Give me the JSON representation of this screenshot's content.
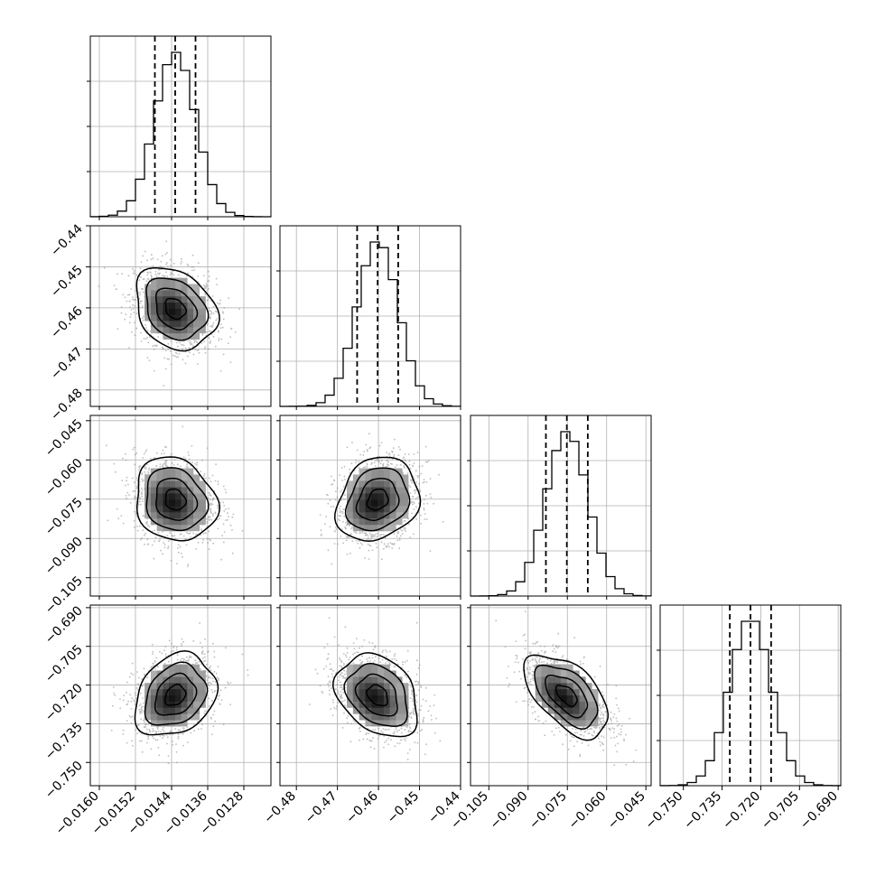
{
  "chart_data": {
    "type": "corner",
    "grid": true,
    "colors": {
      "ink": "#000000",
      "grid": "#b0b0b0",
      "scatter": "#8c8c8c",
      "axes": "#000000"
    },
    "parameters": [
      {
        "mean": -0.01432,
        "sd": 0.00045,
        "range": [
          -0.0162,
          -0.0122
        ],
        "quantiles": [
          -0.01477,
          -0.01432,
          -0.01387
        ],
        "ticks": [
          "−0.0160",
          "−0.0152",
          "−0.0144",
          "−0.0136",
          "−0.0128"
        ],
        "tick_values": [
          -0.016,
          -0.0152,
          -0.0144,
          -0.0136,
          -0.0128
        ]
      },
      {
        "mean": -0.4602,
        "sd": 0.005,
        "range": [
          -0.484,
          -0.44
        ],
        "quantiles": [
          -0.4652,
          -0.4602,
          -0.4552
        ],
        "ticks": [
          "−0.48",
          "−0.47",
          "−0.46",
          "−0.45",
          "−0.44"
        ],
        "tick_values": [
          -0.48,
          -0.47,
          -0.46,
          -0.45,
          -0.44
        ]
      },
      {
        "mean": -0.0752,
        "sd": 0.008,
        "range": [
          -0.112,
          -0.043
        ],
        "quantiles": [
          -0.0832,
          -0.0752,
          -0.0672
        ],
        "ticks": [
          "−0.105",
          "−0.090",
          "−0.075",
          "−0.060",
          "−0.045"
        ],
        "tick_values": [
          -0.105,
          -0.09,
          -0.075,
          -0.06,
          -0.045
        ]
      },
      {
        "mean": -0.724,
        "sd": 0.008,
        "range": [
          -0.759,
          -0.689
        ],
        "quantiles": [
          -0.732,
          -0.724,
          -0.716
        ],
        "ticks": [
          "−0.750",
          "−0.735",
          "−0.720",
          "−0.705",
          "−0.690"
        ],
        "tick_values": [
          -0.75,
          -0.735,
          -0.72,
          -0.705,
          -0.69
        ]
      }
    ],
    "row_ticks": [
      null,
      {
        "ticks": [
          "−0.44",
          "−0.45",
          "−0.46",
          "−0.47",
          "−0.48"
        ],
        "tick_values": [
          -0.44,
          -0.45,
          -0.46,
          -0.47,
          -0.48
        ]
      },
      {
        "ticks": [
          "−0.045",
          "−0.060",
          "−0.075",
          "−0.090",
          "−0.105"
        ],
        "tick_values": [
          -0.045,
          -0.06,
          -0.075,
          -0.09,
          -0.105
        ]
      },
      {
        "ticks": [
          "−0.690",
          "−0.705",
          "−0.720",
          "−0.735",
          "−0.750"
        ],
        "tick_values": [
          -0.69,
          -0.705,
          -0.72,
          -0.735,
          -0.75
        ]
      }
    ],
    "correlations": [
      {
        "pair": [
          1,
          0
        ],
        "rho": -0.25
      },
      {
        "pair": [
          2,
          0
        ],
        "rho": -0.15
      },
      {
        "pair": [
          2,
          1
        ],
        "rho": 0.2
      },
      {
        "pair": [
          3,
          0
        ],
        "rho": 0.25
      },
      {
        "pair": [
          3,
          1
        ],
        "rho": -0.3
      },
      {
        "pair": [
          3,
          2
        ],
        "rho": -0.55
      }
    ],
    "contour_levels_sigma": [
      0.5,
      1.0,
      1.5,
      2.0
    ],
    "histogram_bins": 20
  }
}
